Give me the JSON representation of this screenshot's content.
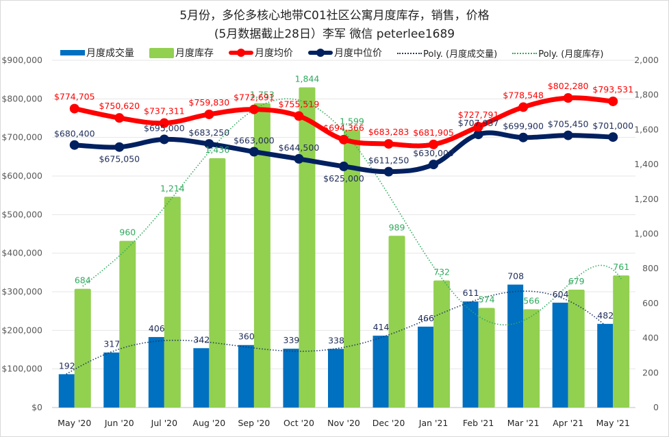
{
  "chart_data": {
    "type": "bar",
    "title": "5月份，多伦多核心地带C01社区公寓月度库存，销售，价格",
    "subtitle": "(5月数据截止28日）李军 微信 peterlee1689",
    "categories": [
      "May '20",
      "Jun '20",
      "Jul '20",
      "Aug '20",
      "Sep '20",
      "Oct '20",
      "Nov '20",
      "Dec '20",
      "Jan '21",
      "Feb '21",
      "Mar '21",
      "Apr '21",
      "May '21"
    ],
    "left_axis": {
      "ylim": [
        0,
        900000
      ],
      "ticks": [
        0,
        100000,
        200000,
        300000,
        400000,
        500000,
        600000,
        700000,
        800000,
        900000
      ],
      "tick_labels": [
        "$0",
        "$100,000",
        "$200,000",
        "$300,000",
        "$400,000",
        "$500,000",
        "$600,000",
        "$700,000",
        "$800,000",
        "$900,000"
      ]
    },
    "right_axis": {
      "ylim": [
        0,
        2000
      ],
      "ticks": [
        0,
        200,
        400,
        600,
        800,
        1000,
        1200,
        1400,
        1600,
        1800,
        2000
      ],
      "tick_labels": [
        "0",
        "200",
        "400",
        "600",
        "800",
        "1,000",
        "1,200",
        "1,400",
        "1,600",
        "1,800",
        "2,000"
      ]
    },
    "grid": true,
    "legend_position": "top",
    "series": [
      {
        "name": "月度成交量",
        "kind": "bar",
        "axis": "right",
        "color": "#0070c0",
        "label_color": "#1f2d5a",
        "values": [
          192,
          317,
          406,
          342,
          360,
          339,
          338,
          414,
          466,
          611,
          708,
          604,
          482
        ],
        "labels": [
          "192",
          "317",
          "406",
          "342",
          "360",
          "339",
          "338",
          "414",
          "466",
          "611",
          "708",
          "604",
          "482"
        ]
      },
      {
        "name": "月度库存",
        "kind": "bar",
        "axis": "right",
        "color": "#92d050",
        "label_color": "#2eaa5c",
        "values": [
          684,
          960,
          1214,
          1436,
          1753,
          1844,
          1599,
          989,
          732,
          574,
          566,
          679,
          761
        ],
        "labels": [
          "684",
          "960",
          "1,214",
          "1,436",
          "1,753",
          "1,844",
          "1,599",
          "989",
          "732",
          "574",
          "566",
          "679",
          "761"
        ]
      },
      {
        "name": "月度均价",
        "kind": "line",
        "axis": "left",
        "color": "#ff0000",
        "label_color": "#ff0000",
        "values": [
          774705,
          750620,
          737311,
          759830,
          772691,
          755519,
          694366,
          683283,
          681905,
          727791,
          778548,
          802280,
          793531
        ],
        "labels": [
          "$774,705",
          "$750,620",
          "$737,311",
          "$759,830",
          "$772,691",
          "$755,519",
          "$694,366",
          "$683,283",
          "$681,905",
          "$727,791",
          "$778,548",
          "$802,280",
          "$793,531"
        ]
      },
      {
        "name": "月度中位价",
        "kind": "line",
        "axis": "left",
        "color": "#002060",
        "label_color": "#1f2d5a",
        "values": [
          680400,
          675050,
          695000,
          683250,
          663000,
          644500,
          625000,
          611250,
          630000,
          707937,
          699900,
          705450,
          701000
        ],
        "labels": [
          "$680,400",
          "$675,050",
          "$695,000",
          "$683,250",
          "$663,000",
          "$644,500",
          "$625,000",
          "$611,250",
          "$630,000",
          "$707,937",
          "$699,900",
          "$705,450",
          "$701,000"
        ]
      },
      {
        "name": "Poly. (月度成交量)",
        "kind": "trendline",
        "of": "月度成交量",
        "color": "#1f3864"
      },
      {
        "name": "Poly. (月度库存)",
        "kind": "trendline",
        "of": "月度库存",
        "color": "#2eaa5c"
      }
    ]
  },
  "legend": [
    {
      "label": "月度成交量"
    },
    {
      "label": "月度库存"
    },
    {
      "label": "月度均价"
    },
    {
      "label": "月度中位价"
    },
    {
      "label": "Poly. (月度成交量)"
    },
    {
      "label": "Poly. (月度库存)"
    }
  ]
}
